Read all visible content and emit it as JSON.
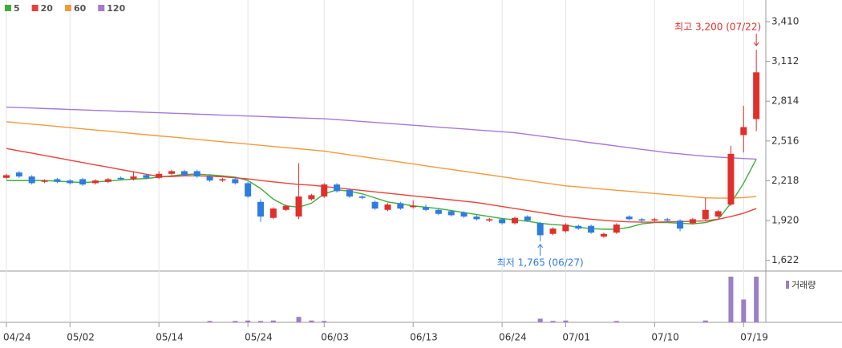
{
  "chart_data": {
    "type": "candlestick",
    "categories": [
      "04/24",
      null,
      null,
      null,
      null,
      "05/02",
      null,
      null,
      null,
      null,
      null,
      null,
      "05/14",
      null,
      null,
      null,
      null,
      null,
      null,
      "05/24",
      null,
      null,
      null,
      null,
      null,
      "06/03",
      null,
      null,
      null,
      null,
      null,
      null,
      "06/13",
      null,
      null,
      null,
      null,
      null,
      null,
      "06/24",
      null,
      null,
      null,
      null,
      "07/01",
      null,
      null,
      null,
      null,
      null,
      null,
      "07/10",
      null,
      null,
      null,
      null,
      null,
      null,
      "07/19",
      null
    ],
    "ohlc": {
      "up_color": "#e0302b",
      "down_color": "#2f7ce0",
      "open": [
        2240,
        2280,
        2250,
        2210,
        2230,
        2220,
        2230,
        2200,
        2210,
        2240,
        2230,
        2260,
        2240,
        2270,
        2290,
        2290,
        2250,
        2220,
        2230,
        2200,
        2060,
        1940,
        2000,
        1950,
        2080,
        2100,
        2190,
        2150,
        2100,
        2060,
        2000,
        2050,
        2020,
        2020,
        2000,
        1990,
        1980,
        1950,
        1920,
        1930,
        1900,
        1950,
        1900,
        1820,
        1840,
        1880,
        1880,
        1800,
        1830,
        1950,
        1930,
        1920,
        1930,
        1920,
        1900,
        1930,
        1950,
        2040,
        2560,
        2680
      ],
      "high": [
        2270,
        2290,
        2260,
        2230,
        2240,
        2230,
        2240,
        2230,
        2240,
        2250,
        2290,
        2270,
        2290,
        2300,
        2300,
        2300,
        2260,
        2240,
        2240,
        2210,
        2080,
        2020,
        2040,
        2350,
        2120,
        2200,
        2200,
        2160,
        2110,
        2070,
        2050,
        2060,
        2070,
        2040,
        2010,
        2000,
        1990,
        1960,
        1940,
        1940,
        1950,
        1960,
        1910,
        1870,
        1900,
        1890,
        1890,
        1830,
        1900,
        1960,
        1940,
        1940,
        1940,
        1930,
        1940,
        2090,
        2000,
        2480,
        2780,
        3200
      ],
      "low": [
        2230,
        2240,
        2190,
        2200,
        2200,
        2190,
        2180,
        2190,
        2200,
        2220,
        2220,
        2230,
        2230,
        2260,
        2250,
        2240,
        2210,
        2210,
        2190,
        2090,
        1910,
        1930,
        1990,
        1930,
        2070,
        2090,
        2130,
        2090,
        2080,
        2000,
        1990,
        2000,
        2010,
        1990,
        1960,
        1950,
        1940,
        1920,
        1910,
        1890,
        1890,
        1910,
        1765,
        1810,
        1830,
        1850,
        1820,
        1790,
        1820,
        1920,
        1910,
        1910,
        1910,
        1840,
        1890,
        1920,
        1940,
        2030,
        2430,
        2590
      ],
      "close": [
        2260,
        2250,
        2200,
        2220,
        2210,
        2200,
        2190,
        2220,
        2230,
        2230,
        2250,
        2240,
        2270,
        2290,
        2260,
        2250,
        2220,
        2230,
        2200,
        2100,
        1950,
        2010,
        2030,
        2100,
        2110,
        2190,
        2140,
        2100,
        2090,
        2010,
        2040,
        2010,
        2030,
        2000,
        1970,
        1960,
        1950,
        1930,
        1930,
        1900,
        1940,
        1920,
        1810,
        1860,
        1890,
        1860,
        1830,
        1820,
        1890,
        1930,
        1920,
        1930,
        1920,
        1860,
        1930,
        2000,
        1990,
        2420,
        2620,
        3030
      ]
    },
    "series": [
      {
        "name": "5",
        "color": "#3cae3c",
        "values": [
          2220,
          2220,
          2220,
          2220,
          2215,
          2210,
          2205,
          2210,
          2215,
          2225,
          2230,
          2235,
          2245,
          2255,
          2265,
          2268,
          2262,
          2255,
          2245,
          2220,
          2160,
          2080,
          2030,
          2020,
          2050,
          2120,
          2150,
          2140,
          2120,
          2090,
          2060,
          2045,
          2030,
          2020,
          2010,
          1995,
          1980,
          1965,
          1950,
          1935,
          1925,
          1915,
          1900,
          1890,
          1885,
          1870,
          1860,
          1855,
          1855,
          1870,
          1895,
          1905,
          1905,
          1900,
          1895,
          1905,
          1930,
          2050,
          2200,
          2380
        ]
      },
      {
        "name": "20",
        "color": "#e8413c",
        "values": [
          2460,
          2442,
          2425,
          2407,
          2390,
          2372,
          2355,
          2337,
          2320,
          2302,
          2285,
          2267,
          2250,
          2250,
          2255,
          2255,
          2252,
          2248,
          2240,
          2232,
          2220,
          2210,
          2200,
          2190,
          2185,
          2175,
          2165,
          2155,
          2145,
          2135,
          2125,
          2115,
          2105,
          2095,
          2085,
          2075,
          2065,
          2055,
          2040,
          2025,
          2010,
          1995,
          1980,
          1965,
          1950,
          1940,
          1930,
          1922,
          1915,
          1910,
          1908,
          1908,
          1910,
          1912,
          1915,
          1918,
          1930,
          1950,
          1975,
          2010
        ]
      },
      {
        "name": "60",
        "color": "#f39a3a",
        "values": [
          2660,
          2651,
          2642,
          2634,
          2625,
          2616,
          2607,
          2598,
          2590,
          2581,
          2572,
          2563,
          2554,
          2546,
          2537,
          2528,
          2519,
          2510,
          2502,
          2493,
          2484,
          2475,
          2466,
          2458,
          2449,
          2440,
          2426,
          2412,
          2399,
          2385,
          2371,
          2358,
          2344,
          2330,
          2316,
          2303,
          2289,
          2275,
          2262,
          2248,
          2234,
          2220,
          2207,
          2193,
          2180,
          2172,
          2163,
          2155,
          2147,
          2139,
          2131,
          2123,
          2115,
          2107,
          2098,
          2090,
          2088,
          2088,
          2092,
          2100
        ]
      },
      {
        "name": "120",
        "color": "#a578d8",
        "values": [
          2770,
          2766,
          2763,
          2759,
          2756,
          2752,
          2749,
          2745,
          2742,
          2738,
          2735,
          2731,
          2728,
          2724,
          2721,
          2717,
          2714,
          2710,
          2707,
          2703,
          2700,
          2696,
          2693,
          2689,
          2686,
          2683,
          2676,
          2669,
          2662,
          2655,
          2648,
          2641,
          2634,
          2627,
          2620,
          2613,
          2606,
          2599,
          2592,
          2585,
          2578,
          2566,
          2553,
          2541,
          2528,
          2516,
          2503,
          2491,
          2478,
          2466,
          2453,
          2441,
          2428,
          2420,
          2410,
          2402,
          2395,
          2390,
          2385,
          2380
        ]
      }
    ],
    "volume": {
      "name": "거래량",
      "color": "#9b7fc7",
      "ylim": [
        0,
        100
      ],
      "values": [
        0,
        0,
        0,
        0,
        0,
        0,
        0,
        0,
        0,
        0,
        0,
        0,
        0,
        0,
        0,
        0,
        3,
        0,
        3,
        4,
        3,
        4,
        0,
        12,
        4,
        3,
        0,
        0,
        0,
        0,
        0,
        0,
        0,
        0,
        0,
        0,
        0,
        0,
        0,
        0,
        0,
        0,
        8,
        3,
        4,
        0,
        0,
        0,
        3,
        0,
        0,
        0,
        0,
        0,
        0,
        4,
        0,
        100,
        50,
        100
      ]
    },
    "ylim": [
      1560,
      3464
    ],
    "yticks": [
      {
        "value": 3410,
        "label": "3,410"
      },
      {
        "value": 3112,
        "label": "3,112"
      },
      {
        "value": 2814,
        "label": "2,814"
      },
      {
        "value": 2516,
        "label": "2,516"
      },
      {
        "value": 2218,
        "label": "2,218"
      },
      {
        "value": 1920,
        "label": "1,920"
      },
      {
        "value": 1622,
        "label": "1,622"
      }
    ],
    "annotations": [
      {
        "text": "최고 3,200 (07/22)",
        "index": 59,
        "kind": "high",
        "color": "#e0302b"
      },
      {
        "text": "최저 1,765 (06/27)",
        "index": 42,
        "kind": "low",
        "color": "#2f7ce0"
      }
    ],
    "grid": true
  }
}
